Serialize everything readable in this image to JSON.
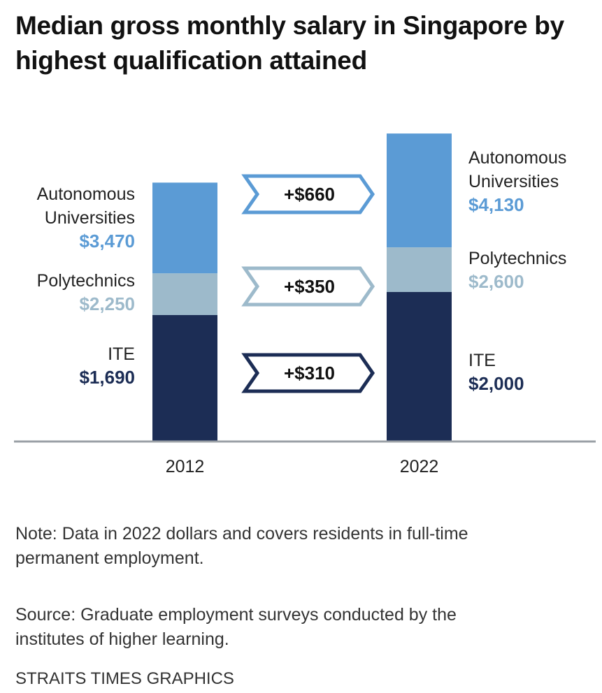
{
  "chart_data": {
    "type": "bar",
    "stacked_overlay": true,
    "title": "Median gross monthly salary in Singapore by highest qualification attained",
    "categories": [
      "2012",
      "2022"
    ],
    "series": [
      {
        "name": "Autonomous Universities",
        "values": [
          3470,
          4130
        ],
        "labels": [
          "$3,470",
          "$4,130"
        ],
        "color": "#5b9bd5"
      },
      {
        "name": "Polytechnics",
        "values": [
          2250,
          2600
        ],
        "labels": [
          "$2,250",
          "$2,600"
        ],
        "color": "#9dbacb"
      },
      {
        "name": "ITE",
        "values": [
          1690,
          2000
        ],
        "labels": [
          "$1,690",
          "$2,000"
        ],
        "color": "#1c2d55"
      }
    ],
    "changes": [
      "+$660",
      "+$350",
      "+$310"
    ],
    "ylim": [
      0,
      4300
    ],
    "xlabel": "",
    "ylabel": ""
  },
  "series_name_lines": [
    [
      "Autonomous",
      "Universities"
    ],
    [
      "Polytechnics"
    ],
    [
      "ITE"
    ]
  ],
  "note": "Note: Data in 2022 dollars and covers residents in full-time permanent employment.",
  "note_lines": [
    "Note: Data in 2022 dollars and covers residents in full-time",
    "permanent employment."
  ],
  "source_lines": [
    "Source: Graduate employment surveys conducted by the",
    "institutes of higher learning."
  ],
  "credit": "STRAITS TIMES GRAPHICS"
}
